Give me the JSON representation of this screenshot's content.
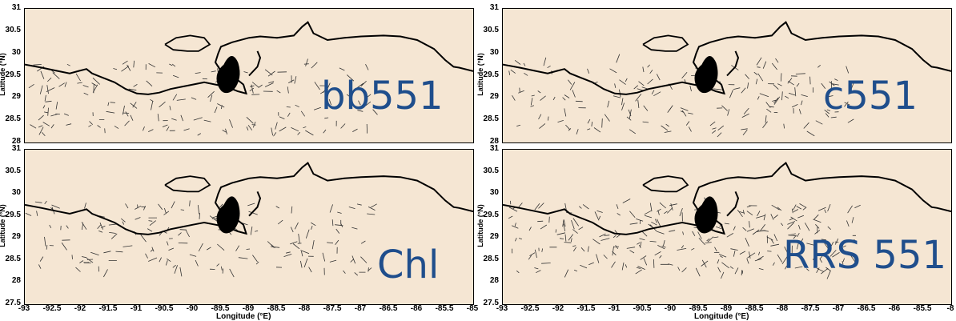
{
  "panels": [
    {
      "id": "top-left",
      "label": "bb551",
      "ylabel": "Latitude (°N)",
      "xlabel": "",
      "yticks": [
        "31",
        "30.5",
        "30",
        "29.5",
        "29",
        "28.5",
        "28"
      ],
      "xticks": []
    },
    {
      "id": "top-right",
      "label": "c551",
      "ylabel": "Latitude (°N)",
      "xlabel": "",
      "yticks": [
        "31",
        "30.5",
        "30",
        "29.5",
        "29",
        "28.5",
        "28"
      ],
      "xticks": []
    },
    {
      "id": "bottom-left",
      "label": "Chl",
      "ylabel": "Latitude (°N)",
      "xlabel": "Longitude (°E)",
      "yticks": [
        "31",
        "30.5",
        "30",
        "29.5",
        "29",
        "28.5",
        "28",
        "27.5"
      ],
      "xticks": [
        "-93",
        "-92.5",
        "-92",
        "-91.5",
        "-91",
        "-90.5",
        "-90",
        "-89.5",
        "-89",
        "-88.5",
        "-88",
        "-87.5",
        "-87",
        "-86.5",
        "-86",
        "-85.5",
        "-85"
      ]
    },
    {
      "id": "bottom-right",
      "label": "RRS 551",
      "ylabel": "Latitude (°N)",
      "xlabel": "Longitude (°E)",
      "yticks": [
        "31",
        "30.5",
        "30",
        "29.5",
        "29",
        "28.5",
        "28",
        "27.5"
      ],
      "xticks": [
        "-93",
        "-92.5",
        "-92",
        "-91.5",
        "-91",
        "-90.5",
        "-90",
        "-89.5",
        "-89",
        "-88.5",
        "-88",
        "-87.5",
        "-87",
        "-86.5",
        "-86",
        "-85.5",
        "-8"
      ]
    }
  ],
  "colors": {
    "background": "#f5e6d3",
    "label": "#1f4e8c",
    "coast": "#000000"
  }
}
